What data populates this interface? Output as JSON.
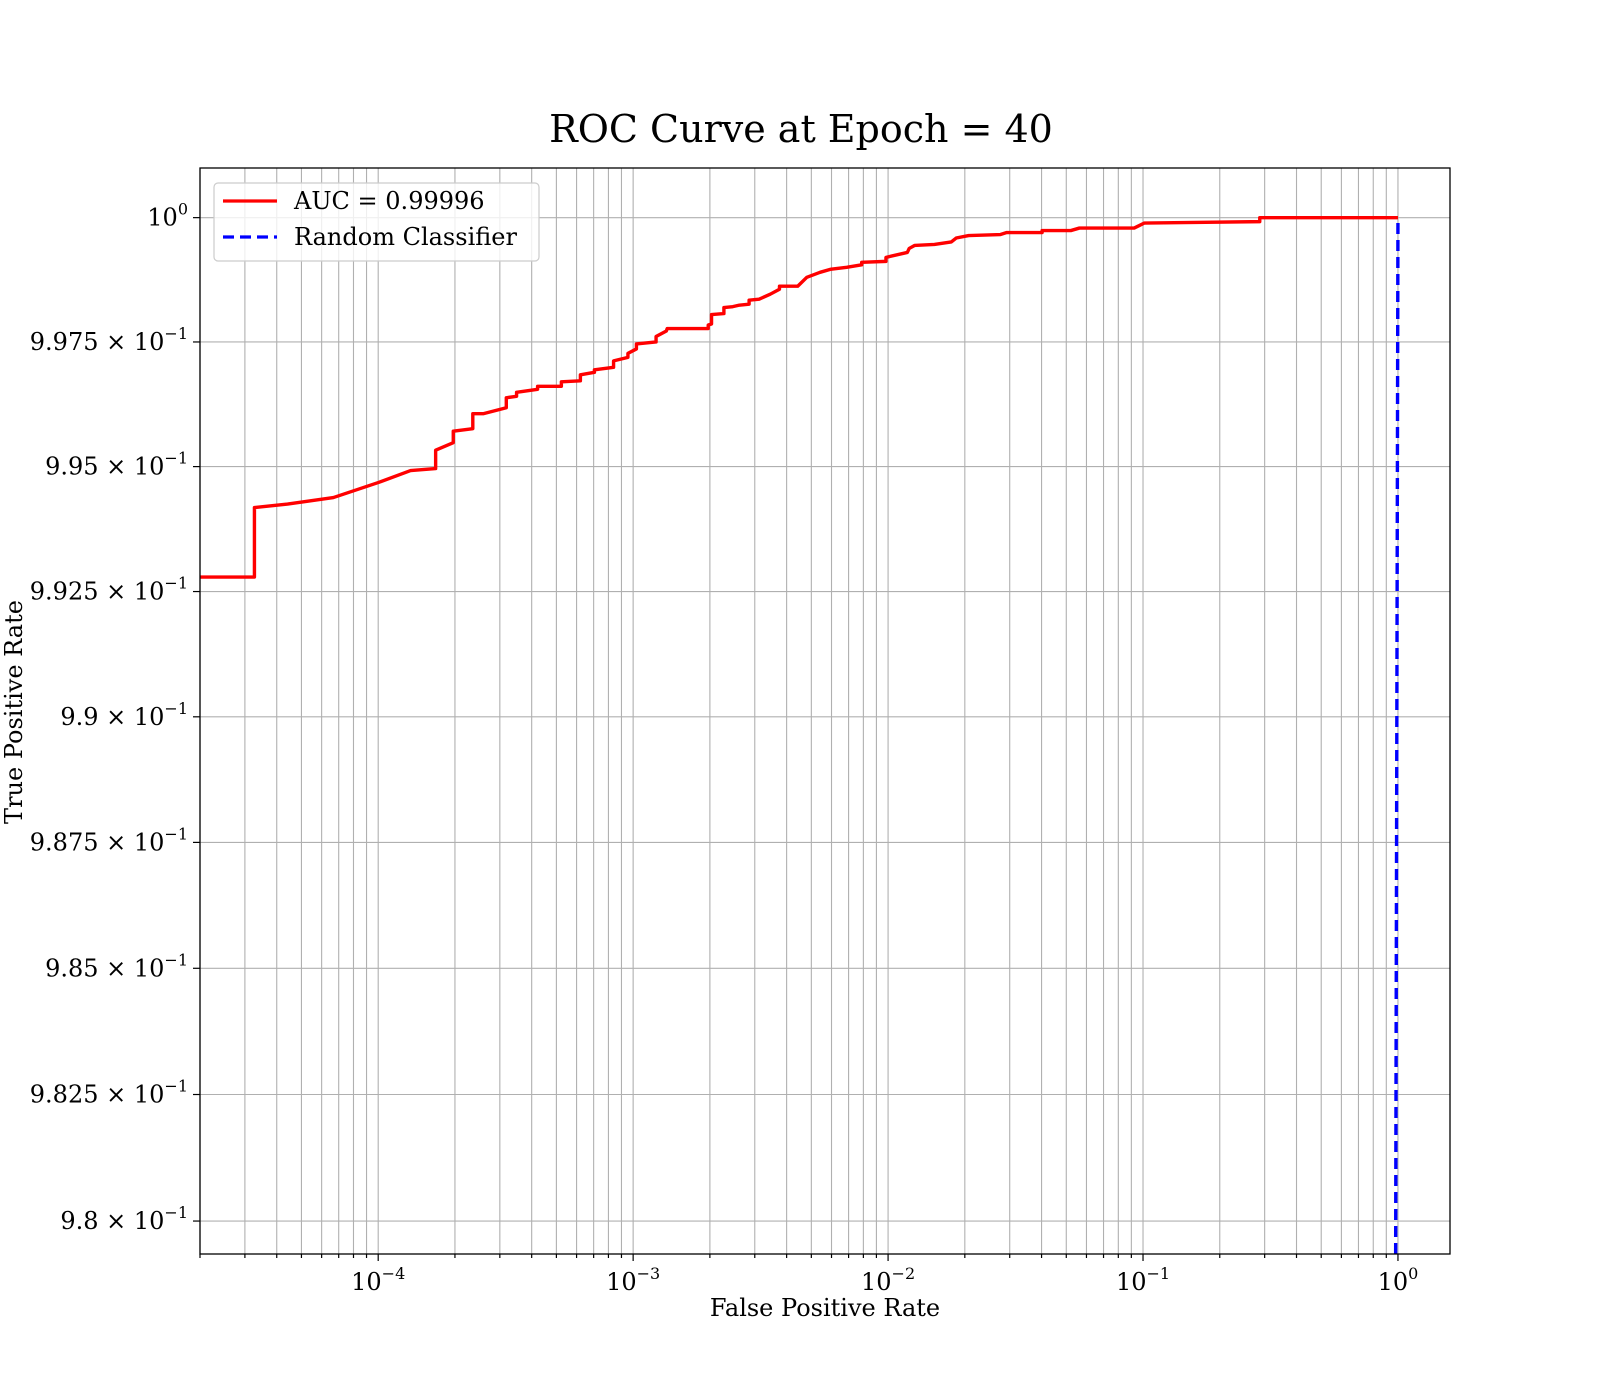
{
  "chart_data": {
    "type": "line",
    "title": "ROC Curve at Epoch = 40",
    "xlabel": "False Positive Rate",
    "ylabel": "True Positive Rate",
    "x_scale": "log",
    "y_scale": "log",
    "xlim": [
      2e-05,
      1.6
    ],
    "ylim": [
      0.97935,
      1.001
    ],
    "x_ticks": [
      {
        "value": 0.0001,
        "base": "10",
        "exp": "−4"
      },
      {
        "value": 0.001,
        "base": "10",
        "exp": "−3"
      },
      {
        "value": 0.01,
        "base": "10",
        "exp": "−2"
      },
      {
        "value": 0.1,
        "base": "10",
        "exp": "−1"
      },
      {
        "value": 1,
        "base": "10",
        "exp": "0"
      }
    ],
    "y_ticks": [
      {
        "value": 1.0,
        "mantissa": "",
        "base": "10",
        "exp": "0"
      },
      {
        "value": 0.9975,
        "mantissa": "9.975 × ",
        "base": "10",
        "exp": "−1"
      },
      {
        "value": 0.995,
        "mantissa": "9.95 × ",
        "base": "10",
        "exp": "−1"
      },
      {
        "value": 0.9925,
        "mantissa": "9.925 × ",
        "base": "10",
        "exp": "−1"
      },
      {
        "value": 0.99,
        "mantissa": "9.9 × ",
        "base": "10",
        "exp": "−1"
      },
      {
        "value": 0.9875,
        "mantissa": "9.875 × ",
        "base": "10",
        "exp": "−1"
      },
      {
        "value": 0.985,
        "mantissa": "9.85 × ",
        "base": "10",
        "exp": "−1"
      },
      {
        "value": 0.9825,
        "mantissa": "9.825 × ",
        "base": "10",
        "exp": "−1"
      },
      {
        "value": 0.98,
        "mantissa": "9.8 × ",
        "base": "10",
        "exp": "−1"
      }
    ],
    "grid": true,
    "legend_position": "upper-left",
    "series": [
      {
        "name": "AUC = 0.99996",
        "color": "#ff0000",
        "style": "solid",
        "points": [
          [
            2e-05,
            0.99279
          ],
          [
            3.27e-05,
            0.99279
          ],
          [
            3.27e-05,
            0.99418
          ],
          [
            4.41e-05,
            0.99425
          ],
          [
            6.67e-05,
            0.99438
          ],
          [
            0.0001,
            0.99468
          ],
          [
            0.000134,
            0.99492
          ],
          [
            0.000168,
            0.99496
          ],
          [
            0.000168,
            0.99533
          ],
          [
            0.000197,
            0.99548
          ],
          [
            0.000197,
            0.99571
          ],
          [
            0.000235,
            0.99576
          ],
          [
            0.000235,
            0.99606
          ],
          [
            0.000258,
            0.99606
          ],
          [
            0.000318,
            0.99618
          ],
          [
            0.000318,
            0.99638
          ],
          [
            0.000349,
            0.99641
          ],
          [
            0.000349,
            0.99649
          ],
          [
            0.000422,
            0.99655
          ],
          [
            0.000422,
            0.99661
          ],
          [
            0.000523,
            0.99661
          ],
          [
            0.000523,
            0.9967
          ],
          [
            0.000621,
            0.99672
          ],
          [
            0.000621,
            0.99684
          ],
          [
            0.000705,
            0.99689
          ],
          [
            0.000705,
            0.99694
          ],
          [
            0.000838,
            0.99699
          ],
          [
            0.000838,
            0.99712
          ],
          [
            0.000954,
            0.99719
          ],
          [
            0.000954,
            0.99727
          ],
          [
            0.00103,
            0.99736
          ],
          [
            0.00103,
            0.99746
          ],
          [
            0.00123,
            0.9975
          ],
          [
            0.00123,
            0.99761
          ],
          [
            0.00135,
            0.99772
          ],
          [
            0.00136,
            0.99777
          ],
          [
            0.00197,
            0.99777
          ],
          [
            0.00197,
            0.99784
          ],
          [
            0.00203,
            0.99786
          ],
          [
            0.00203,
            0.99805
          ],
          [
            0.00227,
            0.99807
          ],
          [
            0.00227,
            0.99819
          ],
          [
            0.00246,
            0.99821
          ],
          [
            0.00261,
            0.99824
          ],
          [
            0.00285,
            0.99826
          ],
          [
            0.00285,
            0.99834
          ],
          [
            0.00312,
            0.99836
          ],
          [
            0.00345,
            0.99846
          ],
          [
            0.00375,
            0.99856
          ],
          [
            0.00375,
            0.99862
          ],
          [
            0.00442,
            0.99862
          ],
          [
            0.0048,
            0.9988
          ],
          [
            0.00541,
            0.9989
          ],
          [
            0.00593,
            0.99896
          ],
          [
            0.00688,
            0.999
          ],
          [
            0.00788,
            0.99905
          ],
          [
            0.00788,
            0.9991
          ],
          [
            0.00981,
            0.99912
          ],
          [
            0.00981,
            0.9992
          ],
          [
            0.0119,
            0.9993
          ],
          [
            0.0121,
            0.99938
          ],
          [
            0.0127,
            0.99944
          ],
          [
            0.0152,
            0.99946
          ],
          [
            0.0177,
            0.99951
          ],
          [
            0.0185,
            0.99959
          ],
          [
            0.0207,
            0.99964
          ],
          [
            0.0276,
            0.99966
          ],
          [
            0.0292,
            0.9997
          ],
          [
            0.0402,
            0.9997
          ],
          [
            0.0402,
            0.99974
          ],
          [
            0.0521,
            0.99974
          ],
          [
            0.0563,
            0.99979
          ],
          [
            0.0923,
            0.99979
          ],
          [
            0.101,
            0.99989
          ],
          [
            0.145,
            0.9999
          ],
          [
            0.287,
            0.99992
          ],
          [
            0.287,
            1.0
          ],
          [
            1.0,
            1.0
          ]
        ]
      },
      {
        "name": "Random Classifier",
        "color": "#0000ff",
        "style": "dashed",
        "points": [
          [
            0.97935,
            0.97935
          ],
          [
            1.0,
            1.0
          ]
        ]
      }
    ]
  }
}
